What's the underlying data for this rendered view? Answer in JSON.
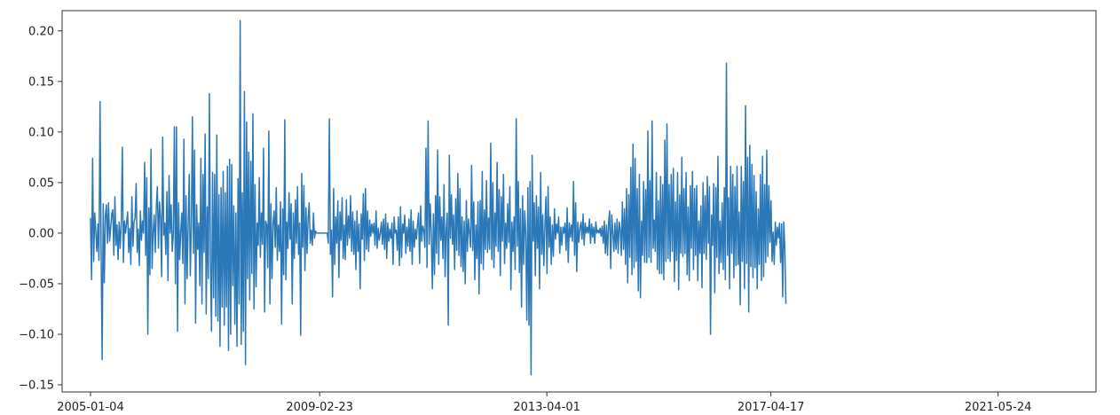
{
  "chart_data": {
    "type": "line",
    "title": "",
    "xlabel": "",
    "ylabel": "",
    "x_range": [
      "2004-07-01",
      "2023-03-01"
    ],
    "ylim": [
      -0.157,
      0.22
    ],
    "grid": false,
    "legend": "none",
    "color": "#2a78b8",
    "x_ticks": [
      "2005-01-04",
      "2009-02-23",
      "2013-04-01",
      "2017-04-17",
      "2021-05-24"
    ],
    "y_ticks": [
      0.2,
      0.15,
      0.1,
      0.05,
      0.0,
      -0.05,
      -0.1,
      -0.15
    ],
    "y_tick_labels": [
      "0.20",
      "0.15",
      "0.10",
      "0.05",
      "0.00",
      "−0.05",
      "−0.10",
      "−0.15"
    ],
    "series": [
      {
        "start": "2005-01-04",
        "frequency": "weekly",
        "values": [
          0.015,
          -0.046,
          0.074,
          -0.028,
          0.02,
          0.002,
          -0.018,
          0.009,
          -0.027,
          0.13,
          -0.015,
          -0.125,
          0.029,
          -0.049,
          0.017,
          0.028,
          -0.01,
          0.03,
          -0.008,
          0.005,
          0.019,
          0.023,
          -0.022,
          0.036,
          -0.012,
          0.008,
          -0.026,
          0.011,
          -0.015,
          0.01,
          0.085,
          -0.029,
          0.012,
          0.0,
          0.01,
          0.021,
          -0.019,
          0.005,
          -0.031,
          0.036,
          -0.013,
          0.011,
          0.015,
          0.049,
          -0.019,
          0.004,
          -0.032,
          0.022,
          -0.007,
          0.012,
          0.0,
          0.07,
          -0.022,
          0.055,
          -0.1,
          0.025,
          -0.041,
          0.083,
          -0.035,
          0.0,
          0.018,
          -0.019,
          0.026,
          0.046,
          -0.015,
          0.031,
          0.016,
          -0.043,
          0.095,
          -0.002,
          0.01,
          -0.021,
          0.041,
          -0.047,
          0.057,
          0.0,
          0.028,
          -0.018,
          -0.002,
          0.105,
          -0.05,
          0.105,
          -0.097,
          0.03,
          -0.026,
          0.001,
          0.02,
          -0.03,
          0.093,
          -0.07,
          0.037,
          -0.045,
          0.008,
          0.058,
          -0.042,
          0.006,
          0.115,
          -0.02,
          0.082,
          -0.089,
          0.028,
          -0.016,
          0.01,
          -0.052,
          0.074,
          -0.07,
          0.058,
          -0.019,
          0.098,
          -0.08,
          0.026,
          -0.045,
          0.138,
          -0.028,
          -0.097,
          0.06,
          -0.064,
          0.058,
          -0.082,
          0.097,
          -0.087,
          0.038,
          -0.112,
          0.045,
          -0.073,
          0.061,
          -0.091,
          0.04,
          -0.073,
          0.066,
          -0.116,
          0.073,
          -0.1,
          0.068,
          -0.052,
          0.027,
          -0.09,
          0.02,
          -0.112,
          0.054,
          -0.07,
          0.21,
          -0.11,
          0.04,
          -0.097,
          0.14,
          -0.13,
          0.11,
          -0.045,
          0.08,
          -0.066,
          0.071,
          -0.04,
          0.118,
          -0.075,
          0.048,
          -0.053,
          0.01,
          -0.012,
          0.055,
          -0.024,
          0.02,
          -0.011,
          0.084,
          -0.078,
          0.012,
          0.008,
          -0.034,
          0.101,
          -0.07,
          0.029,
          -0.045,
          0.01,
          0.022,
          -0.014,
          0.045,
          -0.027,
          0.008,
          -0.018,
          0.031,
          -0.09,
          0.024,
          -0.041,
          0.112,
          -0.046,
          0.011,
          -0.015,
          0.04,
          -0.006,
          0.029,
          -0.07,
          0.02,
          -0.025,
          0.033,
          -0.01,
          0.046,
          -0.021,
          0.01,
          -0.101,
          0.059,
          -0.014,
          0.047,
          -0.037,
          0.025,
          -0.02,
          0.014,
          0.03,
          -0.01,
          0.003,
          -0.012,
          0.02,
          -0.005,
          0.002,
          0.0,
          0.0,
          0.0,
          0.0,
          0.0,
          0.0,
          0.0,
          0.0,
          0.0,
          0.0,
          0.0,
          -0.01,
          0.113,
          -0.021,
          0.003,
          -0.063,
          0.044,
          -0.031,
          0.016,
          -0.01,
          0.032,
          -0.044,
          0.021,
          -0.007,
          0.035,
          -0.025,
          0.008,
          -0.026,
          0.033,
          -0.012,
          0.017,
          -0.005,
          0.037,
          -0.018,
          0.021,
          -0.021,
          0.012,
          -0.036,
          0.022,
          -0.018,
          0.009,
          -0.055,
          0.019,
          -0.006,
          0.039,
          -0.027,
          0.044,
          -0.016,
          0.022,
          -0.018,
          0.013,
          -0.003,
          0.009,
          0.0,
          0.01,
          -0.012,
          0.022,
          -0.015,
          0.005,
          -0.007,
          0.0,
          0.011,
          -0.011,
          0.014,
          -0.016,
          0.019,
          -0.025,
          0.01,
          -0.008,
          0.004,
          -0.005,
          0.01,
          -0.031,
          0.016,
          0.0,
          0.003,
          -0.017,
          0.016,
          -0.032,
          0.026,
          -0.024,
          0.009,
          0.0,
          0.018,
          -0.02,
          0.006,
          -0.013,
          0.014,
          -0.018,
          0.023,
          -0.031,
          0.012,
          -0.014,
          0.004,
          -0.006,
          0.008,
          0.02,
          -0.03,
          0.027,
          -0.008,
          0.007,
          0.003,
          -0.014,
          0.084,
          -0.034,
          0.111,
          -0.011,
          0.029,
          0.0,
          -0.055,
          0.019,
          -0.041,
          0.037,
          -0.02,
          0.082,
          -0.031,
          0.036,
          -0.007,
          0.016,
          -0.025,
          0.048,
          -0.043,
          0.003,
          0.02,
          -0.091,
          0.077,
          -0.005,
          0.038,
          -0.011,
          0.018,
          -0.036,
          0.034,
          -0.017,
          0.059,
          -0.022,
          0.044,
          -0.033,
          0.016,
          -0.038,
          0.012,
          -0.05,
          0.032,
          -0.018,
          0.014,
          0.0,
          -0.014,
          0.067,
          -0.017,
          0.031,
          -0.046,
          0.008,
          -0.025,
          0.031,
          -0.06,
          0.032,
          -0.03,
          0.061,
          -0.036,
          0.023,
          -0.016,
          0.052,
          -0.019,
          0.015,
          -0.016,
          0.089,
          -0.026,
          0.05,
          -0.034,
          0.02,
          -0.013,
          0.07,
          -0.018,
          0.043,
          -0.042,
          0.036,
          -0.008,
          0.058,
          -0.03,
          0.01,
          -0.015,
          0.029,
          -0.009,
          0.046,
          -0.056,
          0.011,
          -0.018,
          0.016,
          -0.036,
          0.113,
          -0.013,
          0.051,
          -0.039,
          0.024,
          -0.073,
          0.037,
          -0.031,
          0.022,
          0.0,
          -0.086,
          0.045,
          -0.091,
          0.051,
          -0.14,
          0.077,
          -0.008,
          0.03,
          -0.042,
          0.037,
          -0.015,
          0.026,
          -0.055,
          0.06,
          -0.021,
          0.018,
          -0.032,
          0.006,
          0.036,
          -0.04,
          0.046,
          -0.014,
          0.016,
          -0.031,
          0.008,
          -0.023,
          0.024,
          -0.006,
          0.009,
          0.0,
          0.016,
          -0.02,
          0.006,
          -0.012,
          0.006,
          0.0,
          0.01,
          -0.017,
          0.025,
          -0.029,
          0.01,
          -0.004,
          0.008,
          -0.008,
          0.051,
          -0.022,
          0.03,
          -0.038,
          0.011,
          -0.009,
          0.005,
          0.011,
          -0.006,
          0.019,
          -0.012,
          0.01,
          0.0,
          0.006,
          0.0,
          0.014,
          -0.01,
          0.009,
          -0.004,
          0.006,
          -0.01,
          0.011,
          0.0,
          0.003,
          0.0,
          0.005,
          -0.003,
          0.007,
          -0.01,
          0.012,
          -0.02,
          0.008,
          -0.022,
          0.01,
          0.022,
          -0.035,
          0.018,
          0.001,
          -0.018,
          0.01,
          -0.016,
          0.014,
          -0.02,
          0.011,
          0.004,
          -0.022,
          0.031,
          -0.016,
          0.024,
          -0.031,
          0.044,
          -0.049,
          0.038,
          -0.024,
          0.065,
          -0.041,
          0.088,
          -0.034,
          0.074,
          -0.028,
          0.044,
          -0.057,
          0.058,
          -0.064,
          0.012,
          -0.022,
          0.051,
          -0.029,
          0.043,
          -0.029,
          0.101,
          -0.024,
          0.052,
          -0.029,
          0.111,
          -0.015,
          0.013,
          -0.018,
          0.06,
          -0.036,
          0.032,
          -0.04,
          0.056,
          -0.04,
          0.048,
          -0.046,
          0.092,
          -0.028,
          0.108,
          -0.025,
          0.048,
          -0.028,
          0.058,
          -0.018,
          0.064,
          -0.048,
          0.031,
          -0.027,
          0.06,
          -0.056,
          0.038,
          -0.02,
          0.075,
          -0.023,
          0.044,
          -0.02,
          0.06,
          -0.041,
          0.026,
          -0.047,
          0.047,
          -0.015,
          0.061,
          -0.036,
          0.044,
          -0.022,
          0.047,
          -0.047,
          0.012,
          -0.02,
          0.027,
          -0.054,
          0.05,
          -0.02,
          0.037,
          -0.026,
          0.056,
          -0.01,
          0.046,
          -0.1,
          0.018,
          -0.012,
          0.049,
          -0.059,
          0.045,
          -0.024,
          0.076,
          -0.04,
          0.012,
          -0.029,
          0.03,
          -0.036,
          0.045,
          -0.046,
          0.168,
          -0.022,
          0.035,
          -0.055,
          0.066,
          -0.02,
          0.058,
          -0.044,
          0.046,
          -0.032,
          0.066,
          -0.031,
          0.021,
          -0.071,
          0.066,
          -0.028,
          0.051,
          -0.055,
          0.126,
          -0.03,
          0.075,
          -0.078,
          0.087,
          -0.033,
          0.068,
          -0.044,
          0.057,
          -0.034,
          0.041,
          -0.055,
          0.024,
          -0.031,
          0.058,
          -0.047,
          0.076,
          -0.043,
          0.048,
          -0.029,
          0.082,
          -0.023,
          0.047,
          -0.009,
          0.032,
          -0.028,
          0.001,
          -0.031,
          0.011,
          -0.012,
          0.006,
          -0.005,
          0.01,
          -0.029,
          0.009,
          -0.063,
          0.011,
          -0.015,
          -0.07
        ]
      }
    ]
  }
}
